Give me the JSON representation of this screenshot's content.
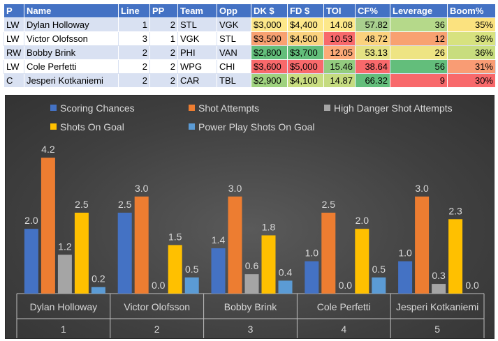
{
  "table": {
    "headers": [
      "P",
      "Name",
      "Line",
      "PP",
      "Team",
      "Opp",
      "DK $",
      "FD $",
      "TOI",
      "CF%",
      "Leverage",
      "Boom%"
    ],
    "rows": [
      {
        "pos": "LW",
        "name": "Dylan Holloway",
        "line": "1",
        "pp": "2",
        "team": "STL",
        "opp": "VGK",
        "dk": "$3,000",
        "fd": "$4,400",
        "toi": "14.08",
        "cf": "57.82",
        "leverage": "36",
        "boom": "35%",
        "colors": {
          "dk": "#fde88a",
          "fd": "#fde88a",
          "toi": "#fde88a",
          "cf": "#a9d08e",
          "leverage": "#b5d98a",
          "boom": "#fbe27f"
        }
      },
      {
        "pos": "LW",
        "name": "Victor Olofsson",
        "line": "3",
        "pp": "1",
        "team": "VGK",
        "opp": "STL",
        "dk": "$3,500",
        "fd": "$4,500",
        "toi": "10.53",
        "cf": "48.72",
        "leverage": "12",
        "boom": "36%",
        "colors": {
          "dk": "#f8a171",
          "fd": "#fbd27e",
          "toi": "#f8696b",
          "cf": "#fbd27e",
          "leverage": "#f8a171",
          "boom": "#d7e27f"
        }
      },
      {
        "pos": "RW",
        "name": "Bobby Brink",
        "line": "2",
        "pp": "2",
        "team": "PHI",
        "opp": "VAN",
        "dk": "$2,800",
        "fd": "$3,700",
        "toi": "12.05",
        "cf": "53.13",
        "leverage": "26",
        "boom": "36%",
        "colors": {
          "dk": "#63be7b",
          "fd": "#63be7b",
          "toi": "#fcaa78",
          "cf": "#e4e283",
          "leverage": "#eee483",
          "boom": "#c8dd7e"
        }
      },
      {
        "pos": "LW",
        "name": "Cole Perfetti",
        "line": "2",
        "pp": "2",
        "team": "WPG",
        "opp": "CHI",
        "dk": "$3,600",
        "fd": "$5,000",
        "toi": "15.46",
        "cf": "38.64",
        "leverage": "56",
        "boom": "31%",
        "colors": {
          "dk": "#f8696b",
          "fd": "#f8696b",
          "toi": "#93cc7f",
          "cf": "#f8696b",
          "leverage": "#63be7b",
          "boom": "#f99c74"
        }
      },
      {
        "pos": "C",
        "name": "Jesperi Kotkaniemi",
        "line": "2",
        "pp": "2",
        "team": "CAR",
        "opp": "TBL",
        "dk": "$2,900",
        "fd": "$4,100",
        "toi": "14.87",
        "cf": "66.32",
        "leverage": "9",
        "boom": "30%",
        "colors": {
          "dk": "#9fd27f",
          "fd": "#c9dd81",
          "toi": "#c5db80",
          "cf": "#63be7b",
          "leverage": "#f8696b",
          "boom": "#f8696b"
        }
      }
    ]
  },
  "chart_data": {
    "type": "bar",
    "categories": [
      "Dylan Holloway",
      "Victor Olofsson",
      "Bobby Brink",
      "Cole Perfetti",
      "Jesperi Kotkaniemi"
    ],
    "category_numbers": [
      "1",
      "2",
      "3",
      "4",
      "5"
    ],
    "ylim": [
      0,
      5
    ],
    "grid": false,
    "legend_position": "top",
    "series": [
      {
        "name": "Scoring Chances",
        "color": "#4472c4",
        "values": [
          2.0,
          2.5,
          1.4,
          1.0,
          1.0
        ]
      },
      {
        "name": "Shot Attempts",
        "color": "#ed7d31",
        "values": [
          4.2,
          3.0,
          3.0,
          2.5,
          3.0
        ]
      },
      {
        "name": "High Danger Shot Attempts",
        "color": "#a5a5a5",
        "values": [
          1.2,
          0.0,
          0.6,
          0.0,
          0.3
        ]
      },
      {
        "name": "Shots On Goal",
        "color": "#ffc000",
        "values": [
          2.5,
          1.5,
          1.8,
          2.0,
          2.3
        ]
      },
      {
        "name": "Power Play Shots On Goal",
        "color": "#5b9bd5",
        "values": [
          0.2,
          0.5,
          0.4,
          0.5,
          0.0
        ]
      }
    ]
  }
}
